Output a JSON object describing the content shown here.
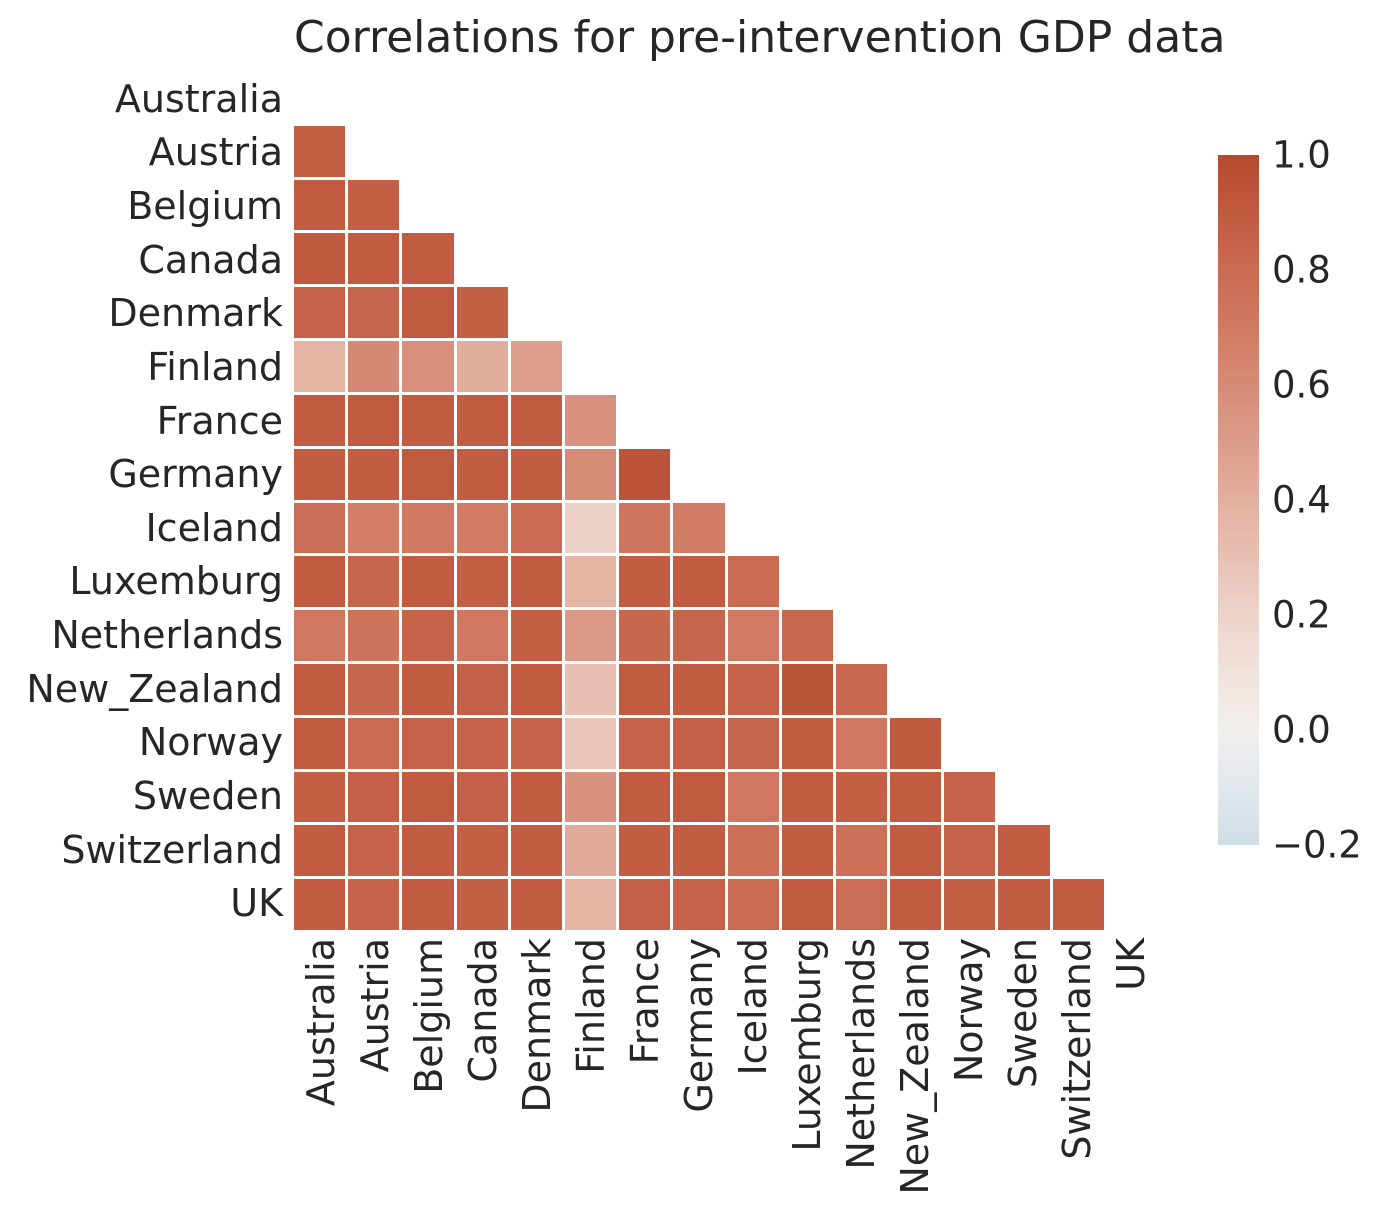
{
  "title": "Correlations for pre-intervention GDP data",
  "colors": {
    "background": "#ffffff",
    "text": "#262626",
    "grid_line": "#ffffff"
  },
  "chart_data": {
    "type": "heatmap",
    "subtype": "correlation-matrix-lower-triangle",
    "title": "Correlations for pre-intervention GDP data",
    "mask": "diagonal-and-upper-triangle-hidden",
    "grid": false,
    "labels": [
      "Australia",
      "Austria",
      "Belgium",
      "Canada",
      "Denmark",
      "Finland",
      "France",
      "Germany",
      "Iceland",
      "Luxemburg",
      "Netherlands",
      "New_Zealand",
      "Norway",
      "Sweden",
      "Switzerland",
      "UK"
    ],
    "matrix": [
      [],
      [
        0.87
      ],
      [
        0.89,
        0.87
      ],
      [
        0.91,
        0.89,
        0.89
      ],
      [
        0.85,
        0.83,
        0.9,
        0.87
      ],
      [
        0.37,
        0.62,
        0.57,
        0.41,
        0.48
      ],
      [
        0.89,
        0.9,
        0.89,
        0.89,
        0.89,
        0.56
      ],
      [
        0.89,
        0.88,
        0.9,
        0.89,
        0.88,
        0.6,
        0.94
      ],
      [
        0.78,
        0.68,
        0.71,
        0.7,
        0.8,
        0.21,
        0.73,
        0.69
      ],
      [
        0.89,
        0.82,
        0.89,
        0.87,
        0.88,
        0.38,
        0.88,
        0.89,
        0.8
      ],
      [
        0.72,
        0.74,
        0.84,
        0.72,
        0.87,
        0.52,
        0.82,
        0.83,
        0.7,
        0.81
      ],
      [
        0.9,
        0.82,
        0.89,
        0.86,
        0.9,
        0.3,
        0.89,
        0.88,
        0.85,
        0.93,
        0.81
      ],
      [
        0.9,
        0.79,
        0.85,
        0.85,
        0.84,
        0.27,
        0.84,
        0.86,
        0.83,
        0.88,
        0.72,
        0.91
      ],
      [
        0.87,
        0.86,
        0.9,
        0.86,
        0.89,
        0.56,
        0.89,
        0.9,
        0.72,
        0.88,
        0.87,
        0.89,
        0.84
      ],
      [
        0.89,
        0.85,
        0.89,
        0.87,
        0.88,
        0.43,
        0.88,
        0.89,
        0.77,
        0.88,
        0.76,
        0.89,
        0.85,
        0.88
      ],
      [
        0.89,
        0.84,
        0.89,
        0.87,
        0.89,
        0.37,
        0.86,
        0.85,
        0.8,
        0.9,
        0.78,
        0.89,
        0.87,
        0.89,
        0.89
      ]
    ],
    "colorbar": {
      "min": -0.2,
      "max": 1.0,
      "tick_labels": [
        "1.0",
        "0.8",
        "0.6",
        "0.4",
        "0.2",
        "0.0",
        "−0.2"
      ],
      "tick_values": [
        1.0,
        0.8,
        0.6,
        0.4,
        0.2,
        0.0,
        -0.2
      ],
      "legend_position": "right"
    },
    "colormap": {
      "name": "diverging light-blue to dark-red",
      "stops": [
        {
          "v": -0.2,
          "color": "#cfdde6"
        },
        {
          "v": -0.1,
          "color": "#e2e8ec"
        },
        {
          "v": 0.0,
          "color": "#f1efee"
        },
        {
          "v": 0.1,
          "color": "#f1e2dc"
        },
        {
          "v": 0.2,
          "color": "#edd3c9"
        },
        {
          "v": 0.3,
          "color": "#e8c1b4"
        },
        {
          "v": 0.4,
          "color": "#e2af9f"
        },
        {
          "v": 0.5,
          "color": "#dc9c8b"
        },
        {
          "v": 0.6,
          "color": "#d68b77"
        },
        {
          "v": 0.7,
          "color": "#d07a64"
        },
        {
          "v": 0.8,
          "color": "#c96a52"
        },
        {
          "v": 0.9,
          "color": "#c05a40"
        },
        {
          "v": 1.0,
          "color": "#b44b31"
        }
      ]
    }
  }
}
